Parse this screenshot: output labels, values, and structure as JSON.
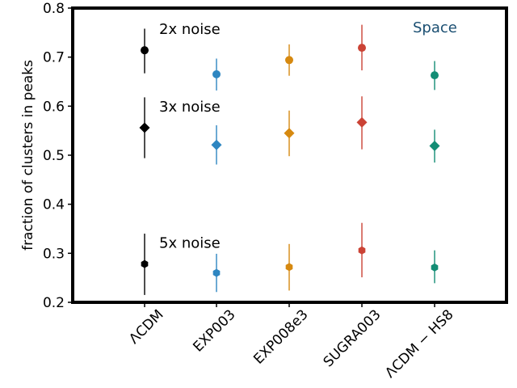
{
  "chart_data": {
    "type": "scatter",
    "title": "",
    "xlabel": "",
    "ylabel": "fraction of clusters in peaks",
    "ylim": [
      0.2,
      0.8
    ],
    "yticks": [
      "0.2",
      "0.3",
      "0.4",
      "0.5",
      "0.6",
      "0.7",
      "0.8"
    ],
    "categories": [
      "ΛCDM",
      "EXP003",
      "EXP008e3",
      "SUGRA003",
      "ΛCDM − HS8"
    ],
    "colors": [
      "#000000",
      "#2e86c1",
      "#d68910",
      "#cb4335",
      "#138d75"
    ],
    "annotation": {
      "text": "Space",
      "color": "#1b4f72"
    },
    "series": [
      {
        "name": "2x noise",
        "marker": "circle",
        "values": [
          0.714,
          0.665,
          0.694,
          0.719,
          0.663
        ],
        "err_low": [
          0.667,
          0.632,
          0.662,
          0.673,
          0.633
        ],
        "err_high": [
          0.758,
          0.697,
          0.726,
          0.766,
          0.692
        ]
      },
      {
        "name": "3x noise",
        "marker": "diamond",
        "values": [
          0.556,
          0.521,
          0.545,
          0.567,
          0.519
        ],
        "err_low": [
          0.494,
          0.481,
          0.498,
          0.512,
          0.485
        ],
        "err_high": [
          0.618,
          0.561,
          0.591,
          0.62,
          0.552
        ]
      },
      {
        "name": "5x noise",
        "marker": "hexagon",
        "values": [
          0.278,
          0.26,
          0.272,
          0.306,
          0.271
        ],
        "err_low": [
          0.215,
          0.221,
          0.224,
          0.251,
          0.239
        ],
        "err_high": [
          0.34,
          0.299,
          0.319,
          0.362,
          0.306
        ]
      }
    ]
  }
}
